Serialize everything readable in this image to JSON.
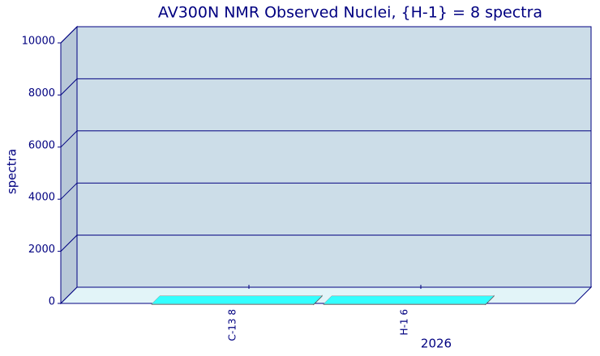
{
  "chart_data": {
    "type": "bar3d",
    "title": "AV300N NMR Observed Nuclei, {H-1} = 8 spectra",
    "categories": [
      "C-13 8",
      "H-1 6"
    ],
    "values": [
      8,
      6
    ],
    "color": "#33ffff",
    "ylabel": "spectra",
    "xlabel": "2026",
    "ylim": [
      0,
      10000
    ],
    "yticks": [
      0,
      2000,
      4000,
      6000,
      8000,
      10000
    ],
    "grid": true
  }
}
